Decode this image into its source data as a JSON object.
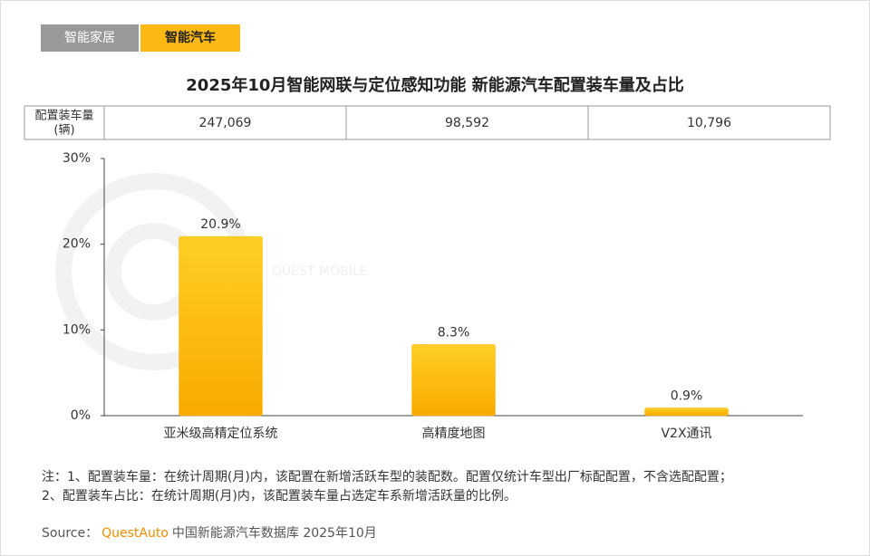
{
  "tabs": [
    "智能家居",
    "智能汽车"
  ],
  "chart_data": {
    "type": "bar",
    "title": "2025年10月智能网联与定位感知功能 新能源汽车配置装车量及占比",
    "table_header": [
      "配置装车量",
      "(辆)"
    ],
    "table_values": [
      247069,
      98592,
      10796
    ],
    "table_labels": [
      "247,069",
      "98,592",
      "10,796"
    ],
    "categories": [
      "亚米级高精定位系统",
      "高精度地图",
      "V2X通讯"
    ],
    "values": [
      20.9,
      8.3,
      0.9
    ],
    "value_labels": [
      "20.9%",
      "8.3%",
      "0.9%"
    ],
    "color": "#fdb913",
    "ylim": [
      0,
      30
    ],
    "yticks": [
      {
        "value": 0,
        "label": "0%"
      },
      {
        "value": 10,
        "label": "10%"
      },
      {
        "value": 20,
        "label": "20%"
      },
      {
        "value": 30,
        "label": "30%"
      }
    ],
    "grid": false
  },
  "watermark": "QUEST MOBILE",
  "notes": [
    "注：1、配置装车量：在统计周期(月)内，该配置在新增活跃车型的装配数。配置仅统计车型出厂标配配置，不含选配配置；",
    "2、配置装车占比：在统计周期(月)内，该配置装车量占选定车系新增活跃量的比例。"
  ],
  "source": {
    "label": "Source：",
    "brand": "QuestAuto",
    "text": "中国新能源汽车数据库 2025年10月"
  }
}
